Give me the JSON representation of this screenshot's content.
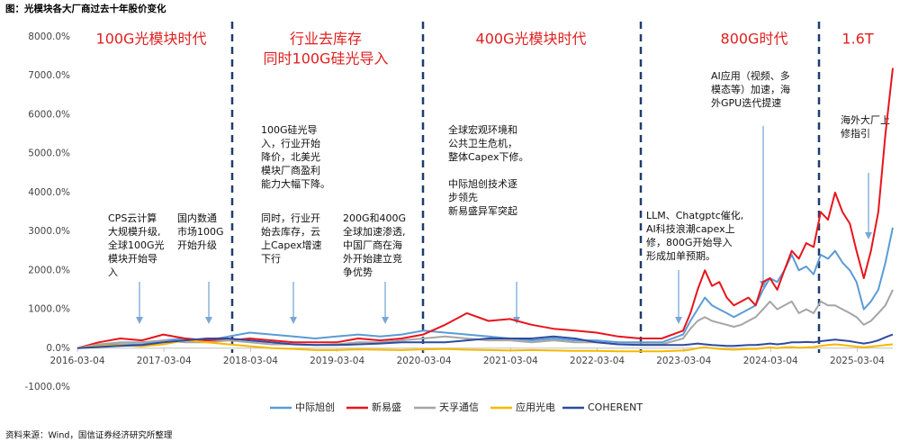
{
  "chart_data": {
    "type": "line",
    "title": "图：光模块各大厂商过去十年股价变化",
    "source": "资料来源：Wind，国信证券经济研究所整理",
    "x": [
      "2016-03-04",
      "2016-06-01",
      "2016-09-01",
      "2016-12-01",
      "2017-03-01",
      "2017-06-01",
      "2017-09-01",
      "2017-12-01",
      "2018-03-01",
      "2018-06-01",
      "2018-09-01",
      "2018-12-01",
      "2019-03-01",
      "2019-06-01",
      "2019-09-01",
      "2019-12-01",
      "2020-03-01",
      "2020-06-01",
      "2020-09-01",
      "2020-12-01",
      "2021-03-01",
      "2021-06-01",
      "2021-09-01",
      "2021-12-01",
      "2022-03-01",
      "2022-06-01",
      "2022-09-01",
      "2022-12-01",
      "2023-03-01",
      "2023-04-01",
      "2023-05-01",
      "2023-06-01",
      "2023-07-01",
      "2023-08-01",
      "2023-09-01",
      "2023-10-01",
      "2023-11-01",
      "2023-12-01",
      "2024-01-01",
      "2024-02-01",
      "2024-03-01",
      "2024-04-01",
      "2024-05-01",
      "2024-06-01",
      "2024-07-01",
      "2024-08-01",
      "2024-09-01",
      "2024-10-01",
      "2024-11-01",
      "2024-12-01",
      "2025-01-01",
      "2025-02-01",
      "2025-03-01",
      "2025-04-01",
      "2025-05-01",
      "2025-06-01",
      "2025-07-01",
      "2025-08-01"
    ],
    "xlim": [
      "2016-03-04",
      "2025-08-01"
    ],
    "xticks": [
      "2016-03-04",
      "2017-03-04",
      "2018-03-04",
      "2019-03-04",
      "2020-03-04",
      "2021-03-04",
      "2022-03-04",
      "2023-03-04",
      "2024-03-04",
      "2025-03-04"
    ],
    "ylim": [
      -1000,
      8000
    ],
    "yticks": [
      {
        "value": -1000,
        "label": "-1000.0%"
      },
      {
        "value": 0,
        "label": "0.0%"
      },
      {
        "value": 1000,
        "label": "1000.0%"
      },
      {
        "value": 2000,
        "label": "2000.0%"
      },
      {
        "value": 3000,
        "label": "3000.0%"
      },
      {
        "value": 4000,
        "label": "4000.0%"
      },
      {
        "value": 5000,
        "label": "5000.0%"
      },
      {
        "value": 6000,
        "label": "6000.0%"
      },
      {
        "value": 7000,
        "label": "7000.0%"
      },
      {
        "value": 8000,
        "label": "8000.0%"
      }
    ],
    "legend": "bottom",
    "series": [
      {
        "name": "中际旭创",
        "color": "#5b9bd5",
        "values": [
          0,
          80,
          100,
          100,
          200,
          250,
          200,
          300,
          400,
          350,
          300,
          250,
          300,
          350,
          300,
          350,
          450,
          400,
          350,
          300,
          250,
          200,
          250,
          200,
          200,
          150,
          150,
          150,
          350,
          700,
          1000,
          1300,
          1100,
          1000,
          900,
          800,
          900,
          1000,
          1100,
          1500,
          1800,
          1700,
          2000,
          2400,
          2000,
          2100,
          1900,
          2400,
          2300,
          2500,
          2200,
          2000,
          1700,
          1000,
          1200,
          1500,
          2200,
          3100
        ]
      },
      {
        "name": "新易盛",
        "color": "#e8141c",
        "values": [
          0,
          150,
          250,
          200,
          350,
          250,
          200,
          200,
          250,
          200,
          150,
          150,
          150,
          250,
          200,
          250,
          350,
          600,
          900,
          700,
          750,
          600,
          500,
          450,
          400,
          300,
          250,
          250,
          450,
          900,
          1500,
          2000,
          1600,
          1700,
          1300,
          1100,
          1200,
          1300,
          1100,
          1700,
          1800,
          1500,
          2000,
          2500,
          2300,
          2700,
          2600,
          3500,
          3300,
          4000,
          3500,
          3200,
          2500,
          1800,
          2500,
          3500,
          5500,
          7200
        ]
      },
      {
        "name": "天孚通信",
        "color": "#a5a5a5",
        "values": [
          0,
          100,
          150,
          150,
          200,
          150,
          150,
          200,
          150,
          100,
          100,
          80,
          100,
          150,
          150,
          200,
          250,
          300,
          250,
          200,
          200,
          150,
          200,
          150,
          150,
          100,
          100,
          100,
          250,
          500,
          700,
          800,
          700,
          650,
          600,
          550,
          600,
          700,
          800,
          1000,
          1200,
          1000,
          1100,
          1200,
          900,
          1000,
          900,
          1200,
          1100,
          1100,
          1000,
          900,
          800,
          600,
          700,
          900,
          1100,
          1500
        ]
      },
      {
        "name": "应用光电",
        "color": "#f5b800",
        "values": [
          0,
          50,
          80,
          50,
          100,
          200,
          150,
          100,
          50,
          0,
          -20,
          -50,
          -50,
          -30,
          -40,
          -50,
          -30,
          -20,
          -40,
          -50,
          -60,
          -50,
          -60,
          -70,
          -70,
          -80,
          -80,
          -80,
          -60,
          -40,
          0,
          20,
          0,
          -20,
          -30,
          -40,
          -30,
          -20,
          -20,
          0,
          20,
          0,
          20,
          30,
          10,
          20,
          30,
          60,
          80,
          100,
          80,
          60,
          40,
          20,
          40,
          60,
          80,
          100
        ]
      },
      {
        "name": "COHERENT",
        "color": "#2f4b9e",
        "values": [
          0,
          30,
          60,
          80,
          150,
          200,
          250,
          250,
          200,
          150,
          100,
          80,
          80,
          100,
          120,
          150,
          150,
          150,
          200,
          250,
          250,
          250,
          300,
          250,
          150,
          100,
          80,
          80,
          80,
          100,
          120,
          100,
          80,
          70,
          60,
          60,
          70,
          80,
          80,
          100,
          120,
          100,
          120,
          150,
          150,
          160,
          150,
          180,
          200,
          220,
          200,
          180,
          150,
          120,
          150,
          200,
          280,
          350
        ]
      }
    ],
    "phases": [
      {
        "lines": [
          "100G光模块时代"
        ]
      },
      {
        "lines": [
          "行业去库存",
          "同时100G硅光导入"
        ]
      },
      {
        "lines": [
          "400G光模块时代"
        ]
      },
      {
        "lines": [
          "800G时代"
        ]
      },
      {
        "lines": [
          "1.6T"
        ]
      }
    ],
    "annotations": [
      {
        "lines": [
          "CPS云计算",
          "大规模升级,",
          "全球100G光",
          "模块开始导",
          "入"
        ]
      },
      {
        "lines": [
          "国内数通",
          "市场100G",
          "开始升级"
        ]
      },
      {
        "lines": [
          "100G硅光导",
          "入，行业开始",
          "降价，北美光",
          "模块厂商盈利",
          "能力大幅下降。"
        ]
      },
      {
        "lines": [
          "同时，行业开",
          "始去库存，云",
          "上Capex增速",
          "下行"
        ]
      },
      {
        "lines": [
          "200G和400G",
          "全球加速渗透,",
          "中国厂商在海",
          "外开始建立竞",
          "争优势"
        ]
      },
      {
        "lines": [
          "全球宏观环境和",
          "公共卫生危机，",
          "整体Capex下修。"
        ]
      },
      {
        "lines": [
          "中际旭创技术逐",
          "步领先",
          "新易盛异军突起"
        ]
      },
      {
        "lines": [
          "LLM、Chatgptc催化,",
          "AI科技浪潮capex上",
          "修，800G开始导入",
          "形成加单预期。"
        ]
      },
      {
        "lines": [
          "AI应用（视频、多",
          "模态等）加速，海",
          "外GPU迭代提速"
        ]
      },
      {
        "lines": [
          "海外大厂上",
          "修指引"
        ]
      }
    ]
  }
}
